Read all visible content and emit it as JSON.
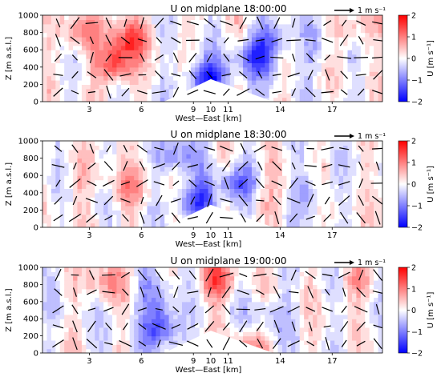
{
  "chart_data": [
    {
      "type": "heatmap",
      "title": "U on midplane 18:00:00",
      "xlabel": "West—East [km]",
      "ylabel": "Z [m a.s.l.]",
      "x_ticks": [
        3,
        6,
        9,
        10,
        11,
        14,
        17
      ],
      "y_ticks": [
        0,
        200,
        400,
        600,
        800,
        1000
      ],
      "xlim": [
        0.3,
        19.9
      ],
      "ylim": [
        0,
        1000
      ],
      "quiver_key": "1 m s⁻¹",
      "colorbar": {
        "label": "U [m s⁻¹]",
        "min": -2,
        "max": 2,
        "ticks": [
          -2,
          -1,
          0,
          1,
          2
        ],
        "cmap": "bwr"
      },
      "terrain": {
        "base_x": [
          7.3,
          13.6
        ],
        "peak_x": 10,
        "peak_z": 260
      },
      "anomalies": [
        {
          "x": 4.5,
          "z": 450,
          "value": 1.6
        },
        {
          "x": 2.2,
          "z": 800,
          "value": 0.9
        },
        {
          "x": 5.2,
          "z": 750,
          "value": 1.2
        },
        {
          "x": 9.8,
          "z": 250,
          "value": -1.9
        },
        {
          "x": 12.6,
          "z": 500,
          "value": -1.3
        },
        {
          "x": 13.6,
          "z": 750,
          "value": -1.0
        },
        {
          "x": 16.2,
          "z": 600,
          "value": -0.5
        },
        {
          "x": 18.3,
          "z": 850,
          "value": 0.7
        }
      ]
    },
    {
      "type": "heatmap",
      "title": "U on midplane 18:30:00",
      "xlabel": "West—East [km]",
      "ylabel": "Z [m a.s.l.]",
      "x_ticks": [
        3,
        6,
        9,
        10,
        11,
        14,
        17
      ],
      "y_ticks": [
        0,
        200,
        400,
        600,
        800,
        1000
      ],
      "xlim": [
        0.3,
        19.9
      ],
      "ylim": [
        0,
        1000
      ],
      "quiver_key": "1 m s⁻¹",
      "colorbar": {
        "label": "U [m s⁻¹]",
        "min": -2,
        "max": 2,
        "ticks": [
          -2,
          -1,
          0,
          1,
          2
        ],
        "cmap": "bwr"
      },
      "terrain": {
        "base_x": [
          7.3,
          13.6
        ],
        "peak_x": 10,
        "peak_z": 260
      },
      "anomalies": [
        {
          "x": 9.2,
          "z": 300,
          "value": -1.6
        },
        {
          "x": 8.3,
          "z": 850,
          "value": -0.9
        },
        {
          "x": 11.6,
          "z": 500,
          "value": -1.1
        },
        {
          "x": 5.2,
          "z": 450,
          "value": 0.8
        },
        {
          "x": 2.6,
          "z": 600,
          "value": 0.5
        },
        {
          "x": 15.8,
          "z": 400,
          "value": -0.6
        },
        {
          "x": 13.0,
          "z": 300,
          "value": 0.5
        }
      ]
    },
    {
      "type": "heatmap",
      "title": "U on midplane 19:00:00",
      "xlabel": "West—East [km]",
      "ylabel": "Z [m a.s.l.]",
      "x_ticks": [
        3,
        6,
        9,
        10,
        11,
        14,
        17
      ],
      "y_ticks": [
        0,
        200,
        400,
        600,
        800,
        1000
      ],
      "xlim": [
        0.3,
        19.9
      ],
      "ylim": [
        0,
        1000
      ],
      "quiver_key": "1 m s⁻¹",
      "colorbar": {
        "label": "U [m s⁻¹]",
        "min": -2,
        "max": 2,
        "ticks": [
          -2,
          -1,
          0,
          1,
          2
        ],
        "cmap": "bwr"
      },
      "terrain": {
        "base_x": [
          7.3,
          13.6
        ],
        "peak_x": 10,
        "peak_z": 260
      },
      "anomalies": [
        {
          "x": 7.2,
          "z": 300,
          "value": -1.5
        },
        {
          "x": 6.8,
          "z": 650,
          "value": -0.8
        },
        {
          "x": 10.3,
          "z": 850,
          "value": 1.2
        },
        {
          "x": 12.2,
          "z": 40,
          "value": 1.0
        },
        {
          "x": 4.0,
          "z": 850,
          "value": 0.8
        },
        {
          "x": 13.4,
          "z": 450,
          "value": -0.6
        },
        {
          "x": 18.4,
          "z": 850,
          "value": 0.6
        }
      ]
    }
  ]
}
